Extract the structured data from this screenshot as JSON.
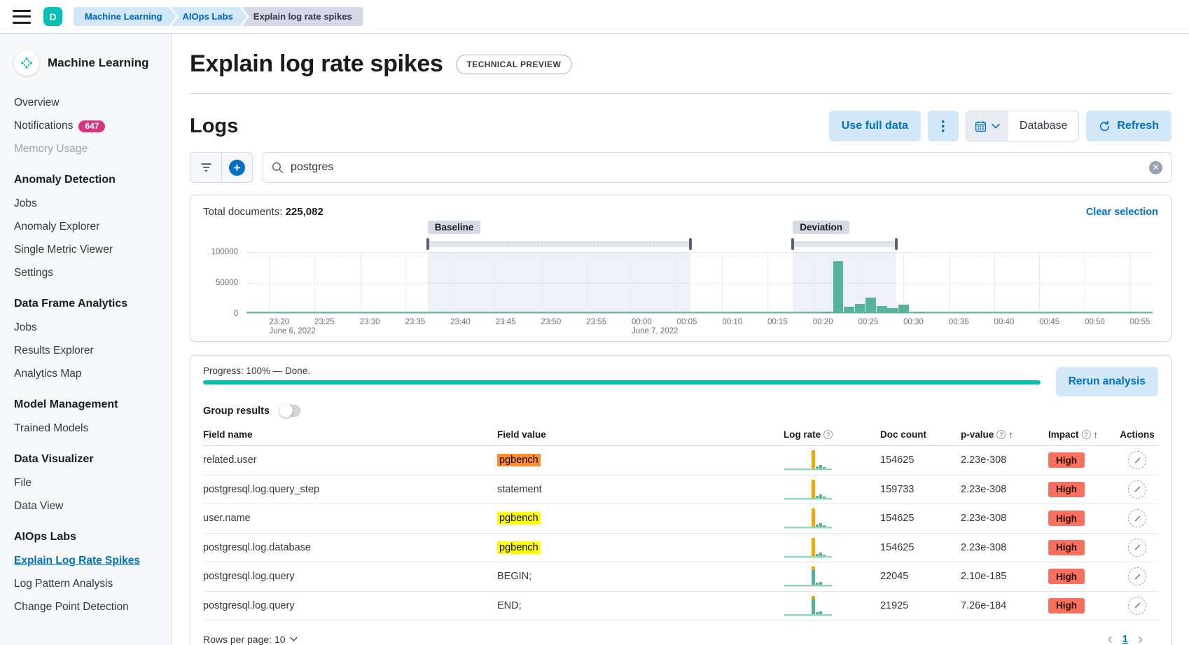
{
  "topbar": {
    "avatar": "D",
    "breadcrumbs": [
      {
        "label": "Machine Learning"
      },
      {
        "label": "AIOps Labs"
      },
      {
        "label": "Explain log rate spikes"
      }
    ]
  },
  "sidebar": {
    "title": "Machine Learning",
    "groups": [
      {
        "items": [
          {
            "label": "Overview"
          },
          {
            "label": "Notifications",
            "badge": "647"
          },
          {
            "label": "Memory Usage"
          }
        ]
      },
      {
        "heading": "Anomaly Detection",
        "items": [
          {
            "label": "Jobs"
          },
          {
            "label": "Anomaly Explorer"
          },
          {
            "label": "Single Metric Viewer"
          },
          {
            "label": "Settings"
          }
        ]
      },
      {
        "heading": "Data Frame Analytics",
        "items": [
          {
            "label": "Jobs"
          },
          {
            "label": "Results Explorer"
          },
          {
            "label": "Analytics Map"
          }
        ]
      },
      {
        "heading": "Model Management",
        "items": [
          {
            "label": "Trained Models"
          }
        ]
      },
      {
        "heading": "Data Visualizer",
        "items": [
          {
            "label": "File"
          },
          {
            "label": "Data View"
          }
        ]
      },
      {
        "heading": "AIOps Labs",
        "items": [
          {
            "label": "Explain Log Rate Spikes"
          },
          {
            "label": "Log Pattern Analysis"
          },
          {
            "label": "Change Point Detection"
          }
        ]
      }
    ]
  },
  "header": {
    "title": "Explain log rate spikes",
    "badge": "TECHNICAL PREVIEW"
  },
  "logs": {
    "heading": "Logs",
    "use_full_data": "Use full data",
    "datepicker_label": "Database",
    "refresh": "Refresh",
    "search_value": "postgres"
  },
  "chart_panel": {
    "total_label": "Total documents:",
    "total_value": "225,082",
    "clear": "Clear selection",
    "baseline_badge": "Baseline",
    "deviation_badge": "Deviation"
  },
  "chart_data": {
    "type": "bar",
    "title": "Document count histogram",
    "ylim": [
      0,
      100000
    ],
    "ytick_labels": [
      "100000",
      "50000",
      "0"
    ],
    "grid": "dotted-horizontal",
    "x_tick_start_pct": 2.5,
    "x_tick_step_pct": 5,
    "x_ticks": [
      {
        "label": "23:20",
        "sub": "June 6, 2022"
      },
      {
        "label": "23:25"
      },
      {
        "label": "23:30"
      },
      {
        "label": "23:35"
      },
      {
        "label": "23:40"
      },
      {
        "label": "23:45"
      },
      {
        "label": "23:50"
      },
      {
        "label": "23:55"
      },
      {
        "label": "00:00",
        "sub": "June 7, 2022"
      },
      {
        "label": "00:05"
      },
      {
        "label": "00:10"
      },
      {
        "label": "00:15"
      },
      {
        "label": "00:20"
      },
      {
        "label": "00:25"
      },
      {
        "label": "00:30"
      },
      {
        "label": "00:35"
      },
      {
        "label": "00:40"
      },
      {
        "label": "00:45"
      },
      {
        "label": "00:50"
      },
      {
        "label": "00:55"
      }
    ],
    "baseline_value": 600,
    "bar_width_pct": 1.15,
    "bar_color": "#54b399",
    "bars": [
      {
        "pct": 64.0,
        "value": 2000
      },
      {
        "pct": 65.3,
        "value": 85000
      },
      {
        "pct": 66.5,
        "value": 10000
      },
      {
        "pct": 67.7,
        "value": 15000
      },
      {
        "pct": 68.9,
        "value": 25000
      },
      {
        "pct": 70.1,
        "value": 12000
      },
      {
        "pct": 71.3,
        "value": 8000
      },
      {
        "pct": 72.5,
        "value": 14000
      },
      {
        "pct": 74.3,
        "value": 2000
      }
    ],
    "brushes": {
      "baseline": {
        "from_pct": 20,
        "to_pct": 49
      },
      "deviation": {
        "from_pct": 60.3,
        "to_pct": 71.7
      }
    }
  },
  "results": {
    "progress_label": "Progress: 100% — Done.",
    "progress_pct": 100,
    "rerun": "Rerun analysis",
    "group_label": "Group results",
    "table": {
      "columns": [
        "Field name",
        "Field value",
        "Log rate",
        "Doc count",
        "p-value",
        "Impact",
        "Actions"
      ],
      "rows": [
        {
          "field_name": "related.user",
          "field_value": "pgbench",
          "highlight": "orange",
          "sparkline": "orange",
          "doc_count": "154625",
          "p_value": "2.23e-308",
          "impact": "High"
        },
        {
          "field_name": "postgresql.log.query_step",
          "field_value": "statement",
          "highlight": "none",
          "sparkline": "orange",
          "doc_count": "159733",
          "p_value": "2.23e-308",
          "impact": "High"
        },
        {
          "field_name": "user.name",
          "field_value": "pgbench",
          "highlight": "yellow",
          "sparkline": "orange",
          "doc_count": "154625",
          "p_value": "2.23e-308",
          "impact": "High"
        },
        {
          "field_name": "postgresql.log.database",
          "field_value": "pgbench",
          "highlight": "yellow",
          "sparkline": "orange",
          "doc_count": "154625",
          "p_value": "2.23e-308",
          "impact": "High"
        },
        {
          "field_name": "postgresql.log.query",
          "field_value": "BEGIN;",
          "highlight": "none",
          "sparkline": "teal",
          "doc_count": "22045",
          "p_value": "2.10e-185",
          "impact": "High"
        },
        {
          "field_name": "postgresql.log.query",
          "field_value": "END;",
          "highlight": "none",
          "sparkline": "teal",
          "doc_count": "21925",
          "p_value": "7.26e-184",
          "impact": "High"
        }
      ]
    },
    "pagination": {
      "rows_per_page": "Rows per page: 10",
      "page": "1",
      "prev": "‹",
      "next": "›"
    }
  },
  "colors": {
    "accent_teal": "#00bfb3",
    "primary_blue": "#0071c2",
    "bar_green": "#54b399",
    "spark_orange": "#f5a700",
    "impact_high": "#f8705e"
  }
}
